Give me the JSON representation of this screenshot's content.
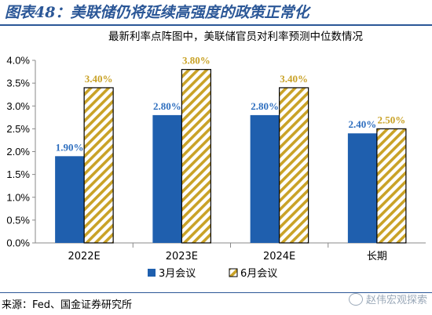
{
  "figure": {
    "title": "图表48：美联储仍将延续高强度的政策正常化",
    "source": "来源：Fed、国金证券研究所",
    "watermark": "赵伟宏观探索"
  },
  "colors": {
    "title_blue": "#2b5797",
    "series1": "#1f5fae",
    "series2_stripe": "#c9a227",
    "label_blue": "#2f6fbf",
    "label_gold": "#c9a227"
  },
  "chart_data": {
    "type": "bar",
    "title": "最新利率点阵图中，美联储官员对利率预测中位数情况",
    "categories": [
      "2022E",
      "2023E",
      "2024E",
      "长期"
    ],
    "series": [
      {
        "name": "3月会议",
        "values": [
          1.9,
          2.8,
          2.8,
          2.4
        ],
        "labels": [
          "1.90%",
          "2.80%",
          "2.80%",
          "2.40%"
        ]
      },
      {
        "name": "6月会议",
        "values": [
          3.4,
          3.8,
          3.4,
          2.5
        ],
        "labels": [
          "3.40%",
          "3.80%",
          "3.40%",
          "2.50%"
        ]
      }
    ],
    "ylim": [
      0,
      4.0
    ],
    "yticks": [
      "0.0%",
      "0.5%",
      "1.0%",
      "1.5%",
      "2.0%",
      "2.5%",
      "3.0%",
      "3.5%",
      "4.0%"
    ],
    "grid": false,
    "legend": "bottom"
  }
}
